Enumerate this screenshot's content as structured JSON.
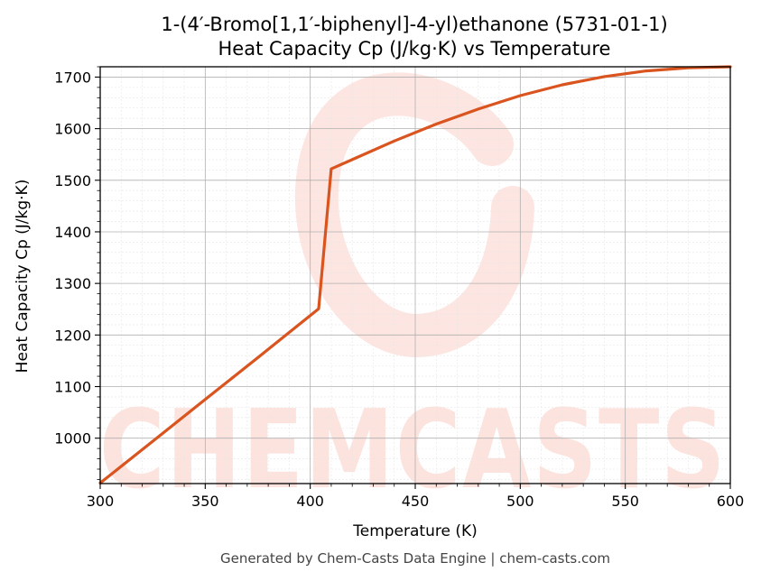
{
  "chart_data": {
    "type": "line",
    "title": "1-(4′-Bromo[1,1′-biphenyl]-4-yl)ethanone (5731-01-1)",
    "subtitle": "Heat Capacity Cp (J/kg·K) vs Temperature",
    "xlabel": "Temperature (K)",
    "ylabel": "Heat Capacity Cp (J/kg·K)",
    "xlim": [
      300,
      600
    ],
    "ylim": [
      912,
      1720
    ],
    "xticks": [
      300,
      350,
      400,
      450,
      500,
      550,
      600
    ],
    "yticks": [
      1000,
      1100,
      1200,
      1300,
      1400,
      1500,
      1600,
      1700
    ],
    "grid": true,
    "line_color": "#d9541e",
    "series": [
      {
        "x": [
          300,
          325,
          350,
          375,
          404,
          410,
          420,
          440,
          460,
          480,
          500,
          520,
          540,
          560,
          580,
          600
        ],
        "y": [
          913,
          994,
          1075,
          1156,
          1251,
          1522,
          1540,
          1576,
          1609,
          1638,
          1664,
          1685,
          1701,
          1712,
          1718,
          1720
        ]
      }
    ]
  },
  "watermark": {
    "text": "CHEMCASTS",
    "color": "#fde3de"
  },
  "footer": "Generated by Chem-Casts Data Engine | chem-casts.com"
}
